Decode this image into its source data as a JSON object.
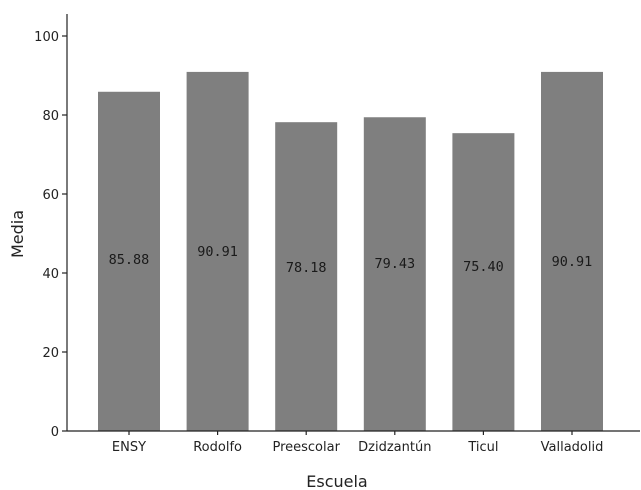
{
  "chart_data": {
    "type": "bar",
    "xlabel": "Escuela",
    "ylabel": "Media",
    "ylim": [
      0,
      100
    ],
    "yticks": [
      0,
      20,
      40,
      60,
      80,
      100
    ],
    "grid": false,
    "categories": [
      "ENSY",
      "Rodolfo",
      "Preescolar",
      "Dzidzantún",
      "Ticul",
      "Valladolid"
    ],
    "values": [
      85.88,
      90.91,
      78.18,
      79.43,
      75.4,
      90.91
    ],
    "data_labels": [
      "85.88",
      "90.91",
      "78.18",
      "79.43",
      "75.40",
      "90.91"
    ],
    "bar_color": "#7f7f7f"
  }
}
